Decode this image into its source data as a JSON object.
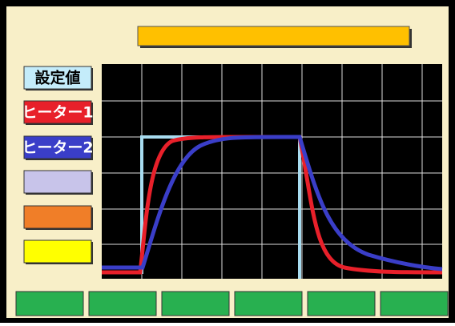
{
  "side_buttons": [
    {
      "label": "設定値"
    },
    {
      "label": "ヒーター1"
    },
    {
      "label": "ヒーター2"
    }
  ]
}
